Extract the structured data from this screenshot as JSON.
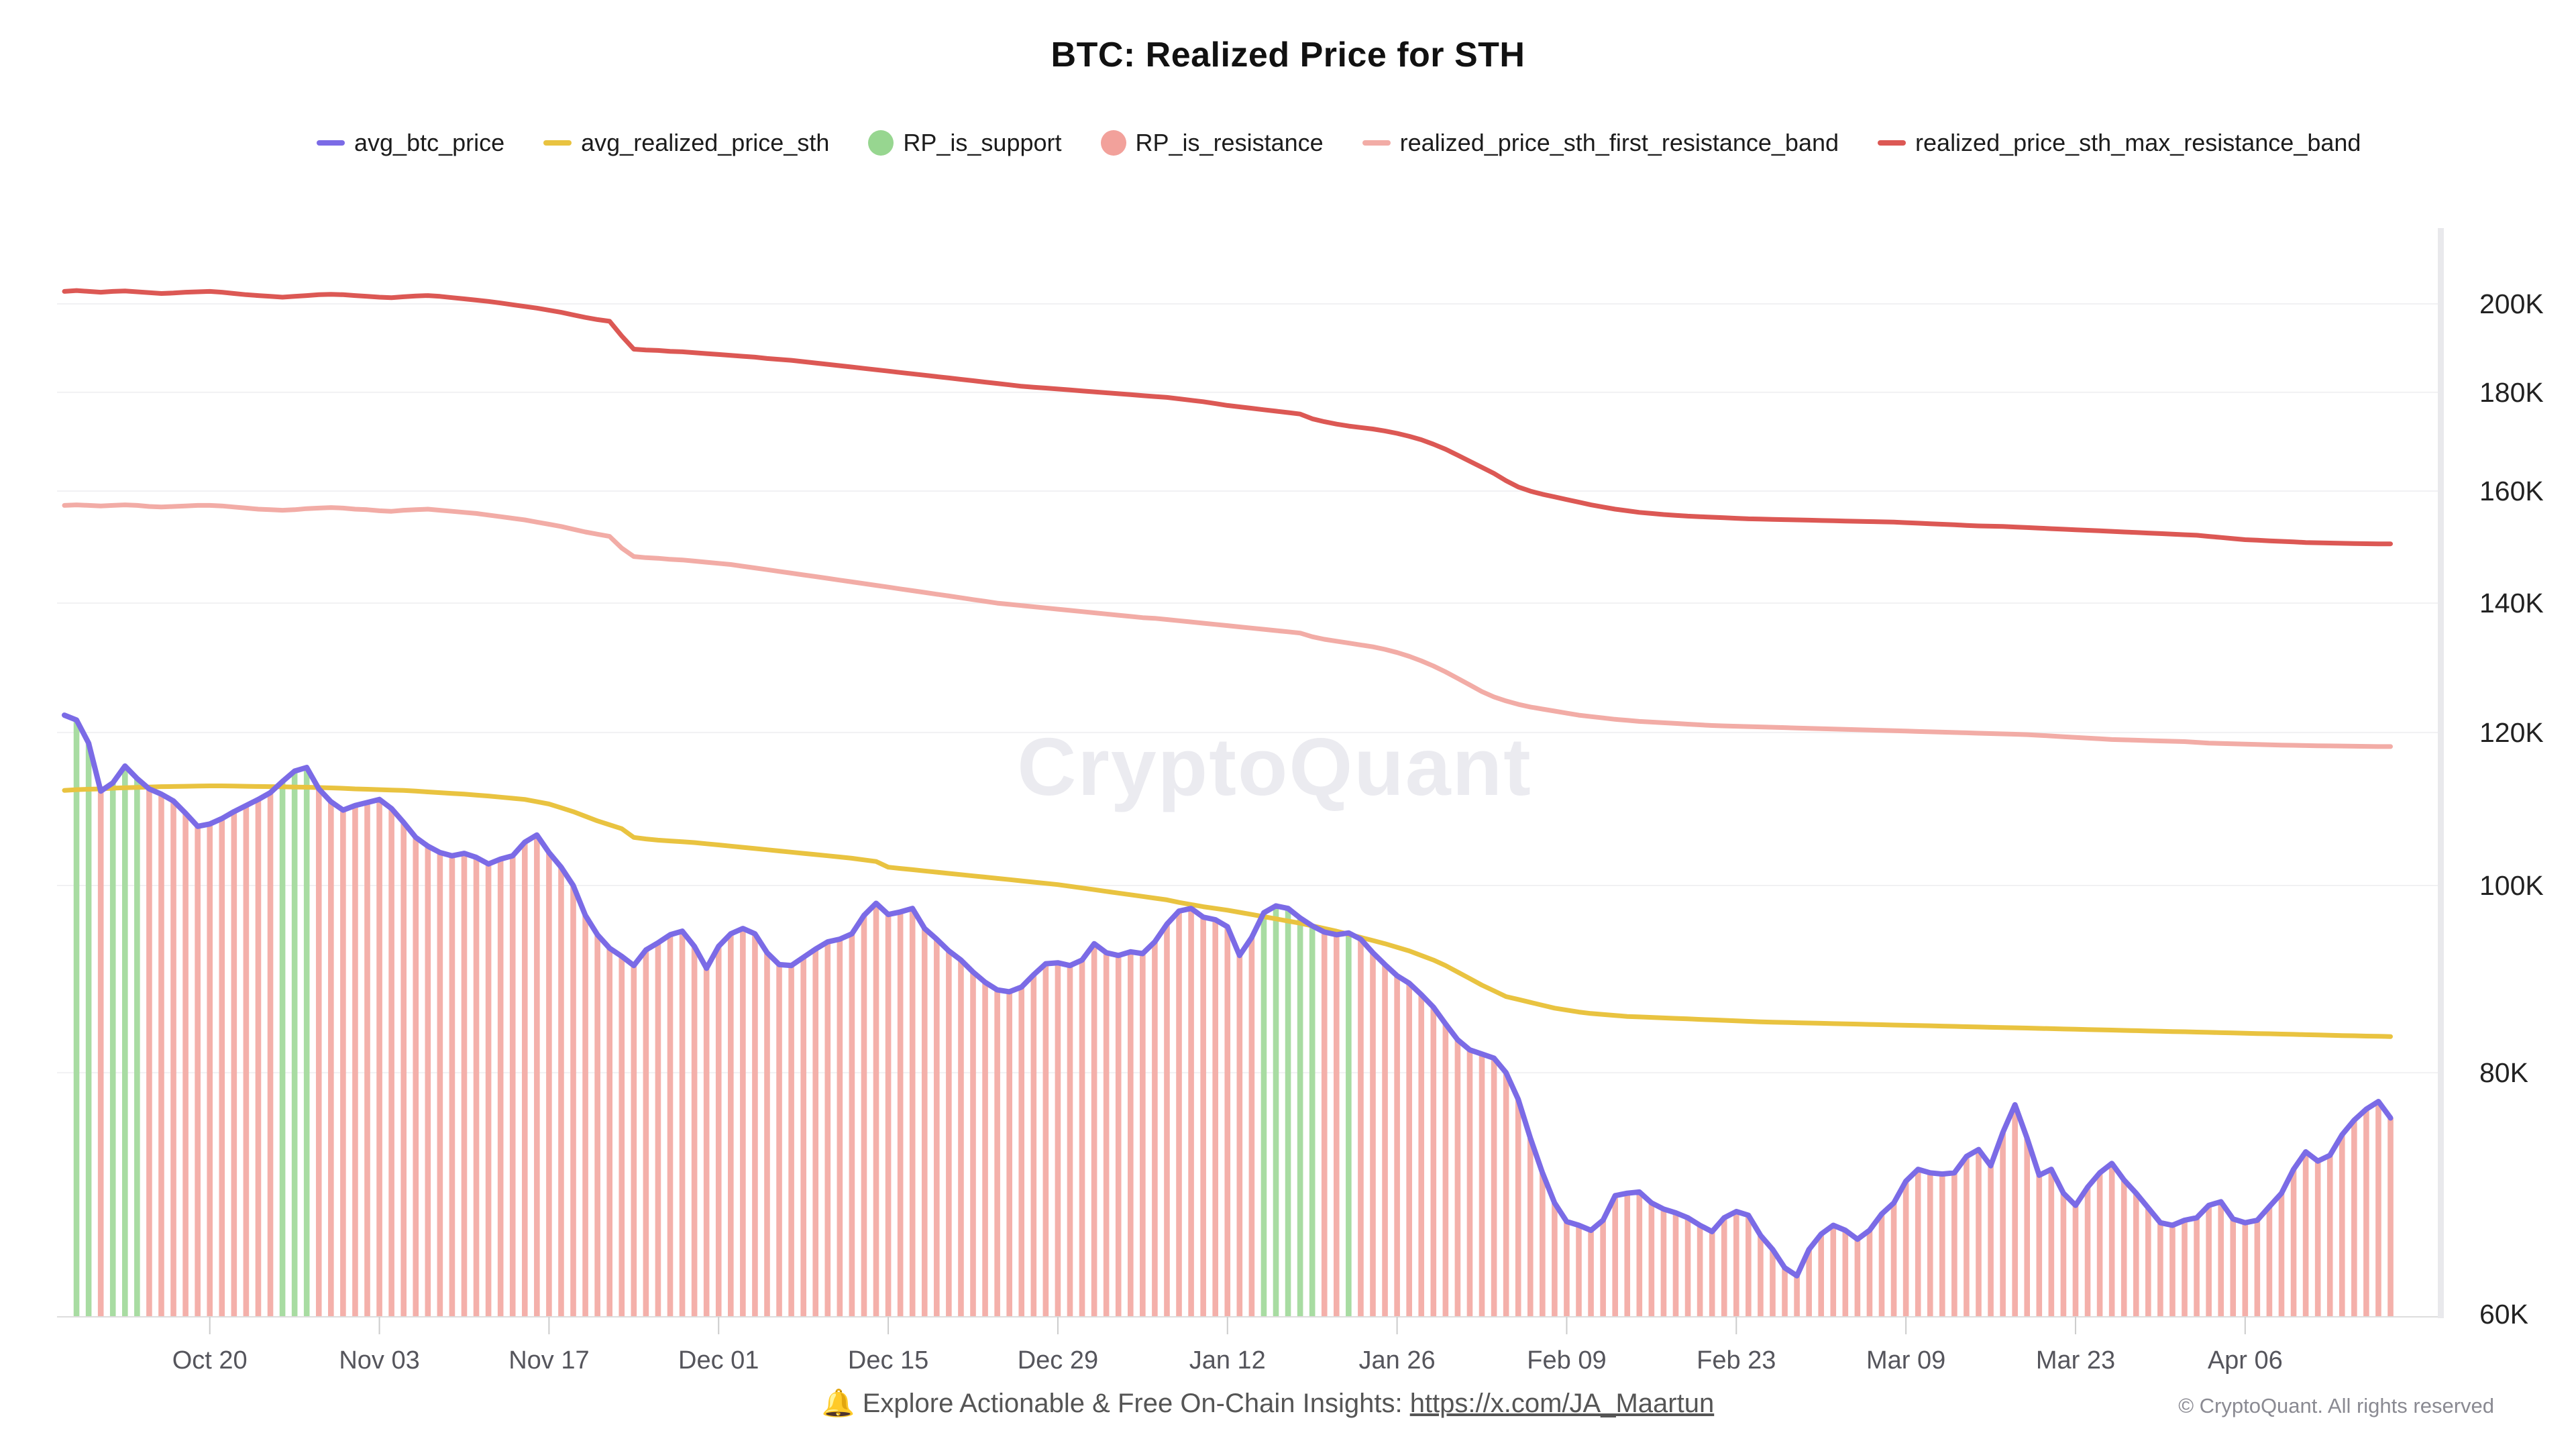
{
  "title": "BTC: Realized Price for STH",
  "watermark": "CryptoQuant",
  "legend": {
    "items": [
      {
        "label": "avg_btc_price",
        "swatch": "line",
        "color": "#7b6be6"
      },
      {
        "label": "avg_realized_price_sth",
        "swatch": "line",
        "color": "#e9c340"
      },
      {
        "label": "RP_is_support",
        "swatch": "dot",
        "color": "#97d690"
      },
      {
        "label": "RP_is_resistance",
        "swatch": "dot",
        "color": "#f2a19b"
      },
      {
        "label": "realized_price_sth_first_resistance_band",
        "swatch": "line",
        "color": "#f2aca6"
      },
      {
        "label": "realized_price_sth_max_resistance_band",
        "swatch": "line",
        "color": "#dc5854"
      }
    ]
  },
  "footer": {
    "bell_icon": "🔔",
    "text": "Explore Actionable & Free On-Chain Insights: ",
    "link": "https://x.com/JA_Maartun",
    "copyright": "© CryptoQuant. All rights reserved"
  },
  "chart_data": {
    "type": "line",
    "subtype": "daily lines with support/resistance bars from baseline to avg_btc_price",
    "y_scale": "log",
    "ylim_k": [
      60,
      205
    ],
    "grid": "horizontal only",
    "x_start_date": "Oct 08",
    "x_end_date": "Apr 18",
    "x_tick_labels": [
      "Oct 20",
      "Nov 03",
      "Nov 17",
      "Dec 01",
      "Dec 15",
      "Dec 29",
      "Jan 12",
      "Jan 26",
      "Feb 09",
      "Feb 23",
      "Mar 09",
      "Mar 23",
      "Apr 06"
    ],
    "x_tick_indices": [
      12,
      26,
      40,
      54,
      68,
      82,
      96,
      110,
      124,
      138,
      152,
      166,
      180
    ],
    "y_tick_labels": [
      "200K",
      "180K",
      "160K",
      "140K",
      "120K",
      "100K",
      "80K",
      "60K"
    ],
    "y_tick_values_k": [
      200,
      180,
      160,
      140,
      120,
      100,
      80,
      60
    ],
    "bars": {
      "support_color": "#a8dca2",
      "resistance_color": "#f4b0aa",
      "rule": "green (RP_is_support) when avg_btc_price >= avg_realized_price_sth, else red (RP_is_resistance)"
    },
    "series": [
      {
        "name": "avg_btc_price",
        "color": "#7b6be6",
        "width": 8,
        "values_k": [
          122.5,
          121.8,
          118.5,
          111.9,
          113,
          115.3,
          113.6,
          112.2,
          111.5,
          110.6,
          109,
          107.3,
          107.6,
          108.3,
          109.2,
          110,
          110.8,
          111.7,
          113.2,
          114.6,
          115.1,
          112.2,
          110.5,
          109.4,
          110,
          110.4,
          110.8,
          109.6,
          107.8,
          105.9,
          104.8,
          104,
          103.6,
          103.9,
          103.4,
          102.6,
          103.2,
          103.6,
          105.3,
          106.2,
          104,
          102.2,
          100,
          96.5,
          94.3,
          92.8,
          91.9,
          90.9,
          92.6,
          93.4,
          94.3,
          94.7,
          93,
          90.6,
          93,
          94.4,
          95,
          94.4,
          92.3,
          91,
          90.9,
          91.8,
          92.7,
          93.5,
          93.8,
          94.4,
          96.5,
          97.9,
          96.6,
          96.9,
          97.3,
          95,
          93.8,
          92.5,
          91.5,
          90.2,
          89.1,
          88.3,
          88.1,
          88.6,
          89.9,
          91.1,
          91.2,
          90.9,
          91.5,
          93.3,
          92.3,
          92,
          92.4,
          92.2,
          93.5,
          95.5,
          97,
          97.3,
          96.3,
          96,
          95.2,
          92,
          94,
          96.8,
          97.6,
          97.3,
          96.2,
          95.3,
          94.6,
          94.3,
          94.5,
          93.8,
          92.3,
          91,
          89.8,
          89,
          87.8,
          86.5,
          84.8,
          83.2,
          82.2,
          81.8,
          81.4,
          80,
          77.5,
          74,
          71,
          68.5,
          67,
          66.7,
          66.3,
          67.1,
          69.1,
          69.3,
          69.4,
          68.5,
          68,
          67.7,
          67.3,
          66.7,
          66.2,
          67.3,
          67.8,
          67.5,
          65.9,
          64.8,
          63.4,
          62.8,
          64.8,
          66,
          66.7,
          66.3,
          65.6,
          66.3,
          67.6,
          68.5,
          70.3,
          71.3,
          71,
          70.9,
          71,
          72.4,
          73,
          71.6,
          74.5,
          77,
          74,
          70.8,
          71.3,
          69.3,
          68.3,
          69.8,
          71,
          71.8,
          70.4,
          69.3,
          68.1,
          66.9,
          66.7,
          67.1,
          67.3,
          68.3,
          68.6,
          67.2,
          66.9,
          67.1,
          68.2,
          69.3,
          71.3,
          72.8,
          72,
          72.5,
          74.3,
          75.6,
          76.6,
          77.3,
          75.8
        ]
      },
      {
        "name": "avg_realized_price_sth",
        "color": "#e9c340",
        "width": 7,
        "values_k": [
          112,
          112.1,
          112.15,
          112.2,
          112.3,
          112.35,
          112.4,
          112.45,
          112.5,
          112.52,
          112.55,
          112.58,
          112.6,
          112.6,
          112.58,
          112.55,
          112.52,
          112.5,
          112.48,
          112.45,
          112.42,
          112.38,
          112.33,
          112.28,
          112.2,
          112.15,
          112.1,
          112.05,
          112,
          111.9,
          111.8,
          111.7,
          111.6,
          111.5,
          111.38,
          111.25,
          111.1,
          110.95,
          110.8,
          110.5,
          110.2,
          109.7,
          109.2,
          108.6,
          108,
          107.5,
          107,
          105.9,
          105.7,
          105.55,
          105.45,
          105.35,
          105.25,
          105.1,
          104.95,
          104.8,
          104.65,
          104.5,
          104.35,
          104.2,
          104.05,
          103.9,
          103.75,
          103.6,
          103.45,
          103.3,
          103.1,
          102.9,
          102.2,
          102.05,
          101.9,
          101.75,
          101.6,
          101.45,
          101.3,
          101.15,
          101,
          100.85,
          100.7,
          100.55,
          100.4,
          100.25,
          100.1,
          99.9,
          99.7,
          99.5,
          99.3,
          99.1,
          98.9,
          98.7,
          98.5,
          98.3,
          98,
          97.75,
          97.5,
          97.3,
          97.1,
          96.85,
          96.6,
          96.35,
          96.1,
          95.85,
          95.6,
          95.3,
          95,
          94.7,
          94.35,
          94,
          93.65,
          93.3,
          92.9,
          92.5,
          92,
          91.5,
          90.9,
          90.2,
          89.5,
          88.8,
          88.2,
          87.6,
          87.3,
          87,
          86.7,
          86.4,
          86.2,
          86,
          85.85,
          85.75,
          85.65,
          85.55,
          85.5,
          85.45,
          85.4,
          85.35,
          85.3,
          85.25,
          85.2,
          85.15,
          85.1,
          85.05,
          85,
          84.97,
          84.94,
          84.91,
          84.88,
          84.85,
          84.82,
          84.8,
          84.77,
          84.74,
          84.71,
          84.68,
          84.65,
          84.62,
          84.6,
          84.57,
          84.54,
          84.51,
          84.48,
          84.45,
          84.42,
          84.4,
          84.37,
          84.34,
          84.31,
          84.28,
          84.25,
          84.22,
          84.2,
          84.17,
          84.14,
          84.11,
          84.08,
          84.05,
          84.02,
          84,
          83.97,
          83.94,
          83.91,
          83.88,
          83.85,
          83.82,
          83.8,
          83.77,
          83.74,
          83.71,
          83.68,
          83.65,
          83.62,
          83.6,
          83.57,
          83.55,
          83.52
        ]
      },
      {
        "name": "realized_price_sth_first_resistance_band",
        "color": "#f2aca6",
        "width": 7,
        "values_k": [
          157.3,
          157.4,
          157.3,
          157.2,
          157.3,
          157.4,
          157.3,
          157.1,
          157,
          157.1,
          157.2,
          157.3,
          157.3,
          157.2,
          157,
          156.8,
          156.6,
          156.5,
          156.4,
          156.5,
          156.7,
          156.8,
          156.9,
          156.8,
          156.6,
          156.5,
          156.3,
          156.2,
          156.4,
          156.5,
          156.6,
          156.4,
          156.2,
          156,
          155.8,
          155.5,
          155.2,
          154.9,
          154.6,
          154.2,
          153.8,
          153.4,
          152.9,
          152.4,
          152,
          151.6,
          149.5,
          148,
          147.8,
          147.7,
          147.5,
          147.4,
          147.2,
          147,
          146.8,
          146.6,
          146.3,
          146,
          145.7,
          145.4,
          145.1,
          144.8,
          144.5,
          144.2,
          143.9,
          143.6,
          143.3,
          143,
          142.7,
          142.4,
          142.1,
          141.8,
          141.5,
          141.2,
          140.9,
          140.6,
          140.3,
          140,
          139.8,
          139.6,
          139.4,
          139.2,
          139,
          138.8,
          138.6,
          138.4,
          138.2,
          138,
          137.8,
          137.6,
          137.5,
          137.3,
          137.1,
          136.9,
          136.7,
          136.5,
          136.3,
          136.1,
          135.9,
          135.7,
          135.5,
          135.3,
          135.1,
          134.5,
          134.1,
          133.8,
          133.5,
          133.2,
          132.9,
          132.5,
          132,
          131.4,
          130.7,
          129.9,
          129,
          128,
          127,
          126,
          125.2,
          124.6,
          124.1,
          123.7,
          123.4,
          123.1,
          122.8,
          122.5,
          122.3,
          122.1,
          121.9,
          121.75,
          121.6,
          121.5,
          121.4,
          121.3,
          121.2,
          121.1,
          121,
          120.95,
          120.9,
          120.85,
          120.8,
          120.75,
          120.7,
          120.65,
          120.6,
          120.55,
          120.5,
          120.45,
          120.4,
          120.35,
          120.3,
          120.25,
          120.2,
          120.15,
          120.1,
          120.05,
          120,
          119.95,
          119.9,
          119.85,
          119.8,
          119.75,
          119.7,
          119.6,
          119.5,
          119.4,
          119.3,
          119.2,
          119.1,
          119,
          118.95,
          118.9,
          118.85,
          118.8,
          118.75,
          118.7,
          118.6,
          118.5,
          118.45,
          118.4,
          118.35,
          118.3,
          118.25,
          118.2,
          118.18,
          118.15,
          118.12,
          118.1,
          118.08,
          118.05,
          118.03,
          118,
          118
        ]
      },
      {
        "name": "realized_price_sth_max_resistance_band",
        "color": "#dc5854",
        "width": 7,
        "values_k": [
          203,
          203.2,
          203,
          202.8,
          203,
          203.1,
          202.9,
          202.7,
          202.5,
          202.6,
          202.8,
          202.9,
          203,
          202.8,
          202.5,
          202.2,
          202,
          201.8,
          201.6,
          201.8,
          202,
          202.2,
          202.3,
          202.2,
          202,
          201.8,
          201.6,
          201.5,
          201.7,
          201.9,
          202,
          201.8,
          201.5,
          201.2,
          200.9,
          200.6,
          200.2,
          199.8,
          199.4,
          199,
          198.5,
          198,
          197.4,
          196.8,
          196.3,
          195.9,
          192.5,
          189.5,
          189.3,
          189.2,
          189,
          188.9,
          188.7,
          188.5,
          188.3,
          188.1,
          187.9,
          187.7,
          187.4,
          187.2,
          187,
          186.7,
          186.4,
          186.1,
          185.8,
          185.5,
          185.2,
          184.9,
          184.6,
          184.3,
          184,
          183.7,
          183.4,
          183.1,
          182.8,
          182.5,
          182.2,
          181.9,
          181.6,
          181.3,
          181.1,
          180.9,
          180.7,
          180.5,
          180.3,
          180.1,
          179.9,
          179.7,
          179.5,
          179.3,
          179.1,
          178.9,
          178.6,
          178.3,
          178,
          177.6,
          177.2,
          176.9,
          176.6,
          176.3,
          176,
          175.7,
          175.4,
          174.4,
          173.8,
          173.3,
          172.9,
          172.6,
          172.3,
          171.9,
          171.4,
          170.8,
          170.1,
          169.2,
          168.2,
          167,
          165.8,
          164.6,
          163.4,
          162,
          160.8,
          160,
          159.4,
          158.9,
          158.4,
          157.9,
          157.4,
          157,
          156.6,
          156.3,
          156,
          155.8,
          155.6,
          155.45,
          155.3,
          155.2,
          155.1,
          155,
          154.9,
          154.8,
          154.75,
          154.7,
          154.65,
          154.6,
          154.55,
          154.5,
          154.45,
          154.4,
          154.35,
          154.3,
          154.25,
          154.2,
          154.1,
          154,
          153.9,
          153.8,
          153.7,
          153.6,
          153.5,
          153.45,
          153.4,
          153.3,
          153.2,
          153.1,
          153,
          152.9,
          152.8,
          152.7,
          152.6,
          152.5,
          152.4,
          152.3,
          152.2,
          152.1,
          152,
          151.9,
          151.8,
          151.6,
          151.4,
          151.2,
          151,
          150.9,
          150.8,
          150.7,
          150.6,
          150.5,
          150.45,
          150.4,
          150.35,
          150.3,
          150.28,
          150.26,
          150.25
        ]
      }
    ]
  }
}
